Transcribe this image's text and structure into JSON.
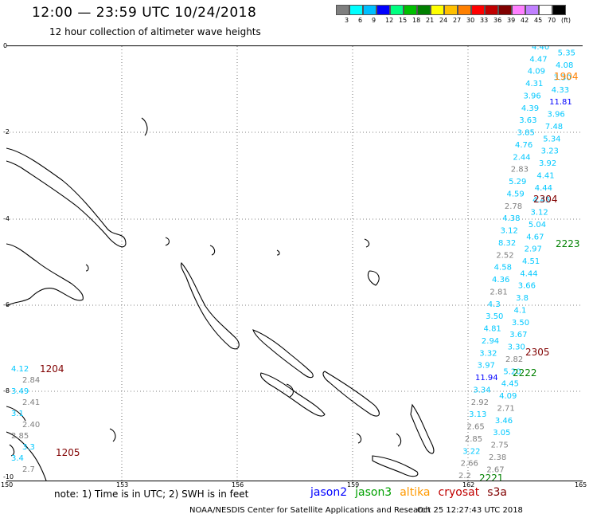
{
  "header": {
    "title": "12:00 — 23:59 UTC 10/24/2018",
    "subtitle": "12 hour collection of altimeter wave heights"
  },
  "legend": {
    "colors": [
      "#7f7f7f",
      "#00ffff",
      "#00bfff",
      "#0000ff",
      "#00ff80",
      "#00c000",
      "#008000",
      "#ffff00",
      "#ffc000",
      "#ff8000",
      "#ff0000",
      "#c00000",
      "#800000",
      "#ff80ff",
      "#c080ff",
      "#ffffff",
      "#000000"
    ],
    "labels": [
      "3",
      "6",
      "9",
      "12",
      "15",
      "18",
      "21",
      "24",
      "27",
      "30",
      "33",
      "36",
      "39",
      "42",
      "45",
      "70",
      "(ft)"
    ]
  },
  "axes": {
    "lat_labels": [
      "0",
      "-2",
      "-4",
      "-6",
      "-8",
      "-10"
    ],
    "lon_labels": [
      "150",
      "153",
      "156",
      "159",
      "162",
      "165"
    ]
  },
  "map": {
    "timestamps": [
      {
        "text": "1204",
        "color": "#800000"
      },
      {
        "text": "1205",
        "color": "#800000"
      },
      {
        "text": "1904",
        "color": "#ff8000"
      },
      {
        "text": "2304",
        "color": "#800000"
      },
      {
        "text": "2223",
        "color": "#008000"
      },
      {
        "text": "2305",
        "color": "#800000"
      },
      {
        "text": "2222",
        "color": "#008000"
      },
      {
        "text": "2221",
        "color": "#008000"
      }
    ],
    "left_track": [
      {
        "text": "4.12",
        "color": "#00c8ff"
      },
      {
        "text": "2.84",
        "color": "#7f7f7f"
      },
      {
        "text": "3.49",
        "color": "#00c8ff"
      },
      {
        "text": "2.41",
        "color": "#7f7f7f"
      },
      {
        "text": "3.1",
        "color": "#00c8ff"
      },
      {
        "text": "2.40",
        "color": "#7f7f7f"
      },
      {
        "text": "2.85",
        "color": "#7f7f7f"
      },
      {
        "text": "3.3",
        "color": "#00c8ff"
      },
      {
        "text": "3.4",
        "color": "#00c8ff"
      },
      {
        "text": "2.7",
        "color": "#7f7f7f"
      }
    ],
    "right_track": [
      {
        "text": "4.40",
        "color": "#00c8ff"
      },
      {
        "text": "5.35",
        "color": "#00c8ff"
      },
      {
        "text": "4.47",
        "color": "#00c8ff"
      },
      {
        "text": "4.08",
        "color": "#00c8ff"
      },
      {
        "text": "4.09",
        "color": "#00c8ff"
      },
      {
        "text": "3.30",
        "color": "#00c8ff"
      },
      {
        "text": "4.31",
        "color": "#00c8ff"
      },
      {
        "text": "4.33",
        "color": "#00c8ff"
      },
      {
        "text": "3.96",
        "color": "#00c8ff"
      },
      {
        "text": "11.81",
        "color": "#0000ff"
      },
      {
        "text": "4.39",
        "color": "#00c8ff"
      },
      {
        "text": "3.96",
        "color": "#00c8ff"
      },
      {
        "text": "3.63",
        "color": "#00c8ff"
      },
      {
        "text": "7.48",
        "color": "#00c8ff"
      },
      {
        "text": "3.85",
        "color": "#00c8ff"
      },
      {
        "text": "5.34",
        "color": "#00c8ff"
      },
      {
        "text": "4.76",
        "color": "#00c8ff"
      },
      {
        "text": "3.23",
        "color": "#00c8ff"
      },
      {
        "text": "2.44",
        "color": "#00c8ff"
      },
      {
        "text": "3.92",
        "color": "#00c8ff"
      },
      {
        "text": "2.83",
        "color": "#7f7f7f"
      },
      {
        "text": "4.41",
        "color": "#00c8ff"
      },
      {
        "text": "5.29",
        "color": "#00c8ff"
      },
      {
        "text": "4.44",
        "color": "#00c8ff"
      },
      {
        "text": "4.59",
        "color": "#00c8ff"
      },
      {
        "text": "4.45",
        "color": "#00c8ff"
      },
      {
        "text": "2.78",
        "color": "#7f7f7f"
      },
      {
        "text": "3.12",
        "color": "#00c8ff"
      },
      {
        "text": "4.38",
        "color": "#00c8ff"
      },
      {
        "text": "5.04",
        "color": "#00c8ff"
      },
      {
        "text": "3.12",
        "color": "#00c8ff"
      },
      {
        "text": "4.67",
        "color": "#00c8ff"
      },
      {
        "text": "8.32",
        "color": "#00c8ff"
      },
      {
        "text": "2.97",
        "color": "#00c8ff"
      },
      {
        "text": "2.52",
        "color": "#7f7f7f"
      },
      {
        "text": "4.51",
        "color": "#00c8ff"
      },
      {
        "text": "4.58",
        "color": "#00c8ff"
      },
      {
        "text": "4.44",
        "color": "#00c8ff"
      },
      {
        "text": "4.36",
        "color": "#00c8ff"
      },
      {
        "text": "3.66",
        "color": "#00c8ff"
      },
      {
        "text": "2.81",
        "color": "#7f7f7f"
      },
      {
        "text": "3.8",
        "color": "#00c8ff"
      },
      {
        "text": "4.3",
        "color": "#00c8ff"
      },
      {
        "text": "4.1",
        "color": "#00c8ff"
      },
      {
        "text": "3.50",
        "color": "#00c8ff"
      },
      {
        "text": "3.50",
        "color": "#00c8ff"
      },
      {
        "text": "4.81",
        "color": "#00c8ff"
      },
      {
        "text": "3.67",
        "color": "#00c8ff"
      },
      {
        "text": "2.94",
        "color": "#00c8ff"
      },
      {
        "text": "3.30",
        "color": "#00c8ff"
      },
      {
        "text": "3.32",
        "color": "#00c8ff"
      },
      {
        "text": "2.82",
        "color": "#7f7f7f"
      },
      {
        "text": "3.97",
        "color": "#00c8ff"
      },
      {
        "text": "5.20",
        "color": "#00c8ff"
      },
      {
        "text": "11.94",
        "color": "#0000ff"
      },
      {
        "text": "4.45",
        "color": "#00c8ff"
      },
      {
        "text": "3.34",
        "color": "#00c8ff"
      },
      {
        "text": "4.09",
        "color": "#00c8ff"
      },
      {
        "text": "2.92",
        "color": "#7f7f7f"
      },
      {
        "text": "2.71",
        "color": "#7f7f7f"
      },
      {
        "text": "3.13",
        "color": "#00c8ff"
      },
      {
        "text": "3.46",
        "color": "#00c8ff"
      },
      {
        "text": "2.65",
        "color": "#7f7f7f"
      },
      {
        "text": "3.05",
        "color": "#00c8ff"
      },
      {
        "text": "2.85",
        "color": "#7f7f7f"
      },
      {
        "text": "2.75",
        "color": "#7f7f7f"
      },
      {
        "text": "3.22",
        "color": "#00c8ff"
      },
      {
        "text": "2.38",
        "color": "#7f7f7f"
      },
      {
        "text": "2.66",
        "color": "#7f7f7f"
      },
      {
        "text": "2.67",
        "color": "#7f7f7f"
      },
      {
        "text": "2.2",
        "color": "#7f7f7f"
      }
    ]
  },
  "footer": {
    "note": "note: 1) Time is in UTC; 2) SWH is in feet",
    "satellites": [
      {
        "name": "jason2",
        "color": "#0000ff"
      },
      {
        "name": "jason3",
        "color": "#00a000"
      },
      {
        "name": "altika",
        "color": "#ff9900"
      },
      {
        "name": "cryosat",
        "color": "#c00000"
      },
      {
        "name": "s3a",
        "color": "#800000"
      }
    ],
    "credit": "NOAA/NESDIS Center for Satellite Applications and Research",
    "timestamp": "Oct 25 12:27:43 UTC 2018"
  }
}
